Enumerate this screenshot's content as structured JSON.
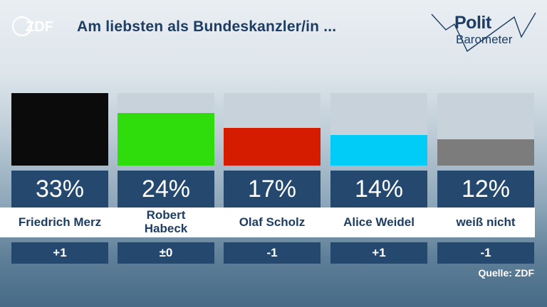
{
  "header": {
    "broadcaster": "ZDF",
    "title": "Am liebsten als Bundeskanzler/in ...",
    "logo_top": "Polit",
    "logo_bottom": "Barometer"
  },
  "colors": {
    "navy": "#24486e",
    "title_text": "#1d3d63",
    "bar_background": "#c8d2da"
  },
  "chart_data": {
    "type": "bar",
    "title": "Am liebsten als Bundeskanzler/in ...",
    "categories": [
      "Friedrich Merz",
      "Robert Habeck",
      "Olaf Scholz",
      "Alice Weidel",
      "weiß nicht"
    ],
    "values": [
      33,
      24,
      17,
      14,
      12
    ],
    "value_labels": [
      "33%",
      "24%",
      "17%",
      "14%",
      "12%"
    ],
    "changes": [
      "+1",
      "±0",
      "-1",
      "+1",
      "-1"
    ],
    "colors": [
      "#0b0b0b",
      "#2fdc0c",
      "#d61c00",
      "#00cdf7",
      "#7c7c7c"
    ],
    "ylim": [
      0,
      33
    ],
    "unit": "%",
    "grid": false,
    "legend": "none"
  },
  "source": "Quelle: ZDF"
}
